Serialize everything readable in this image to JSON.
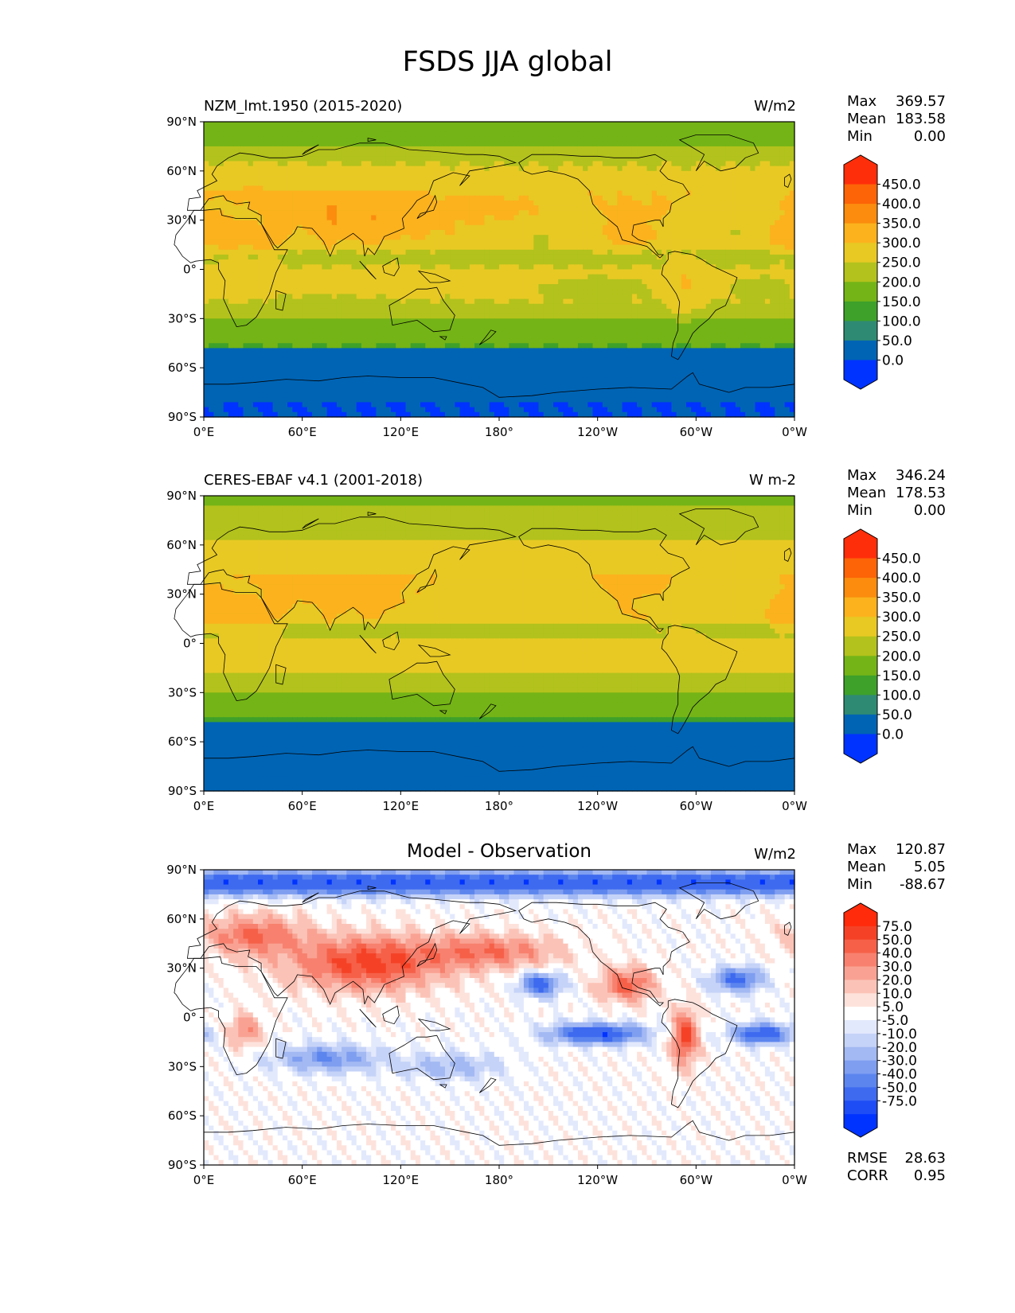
{
  "title": "FSDS JJA global",
  "axes": {
    "lon_labels": [
      "0°E",
      "60°E",
      "120°E",
      "180°",
      "120°W",
      "60°W",
      "0°W"
    ],
    "lat_labels": [
      "90°N",
      "60°N",
      "30°N",
      "0°",
      "30°S",
      "60°S",
      "90°S"
    ]
  },
  "colors": {
    "fsds": [
      "#0033ff",
      "#0064b4",
      "#2e8a73",
      "#3ea12a",
      "#74b416",
      "#b3c21c",
      "#e8c924",
      "#fbb21d",
      "#fb8c0e",
      "#fc6407",
      "#ff2e0a"
    ],
    "diff": [
      "#0033ff",
      "#1e4df5",
      "#3e6af0",
      "#5c85ee",
      "#7f9ef0",
      "#a3b9f3",
      "#c6d3f8",
      "#e3e9fc",
      "#ffffff",
      "#fde2dc",
      "#fbc3b7",
      "#f9a293",
      "#f7816e",
      "#f66049",
      "#f54226",
      "#ff2b0b"
    ]
  },
  "panels": [
    {
      "subtitle": "NZM_lmt.1950 (2015-2020)",
      "units": "W/m2",
      "center_title": "",
      "stats": [
        {
          "label": "Max",
          "value": "369.57"
        },
        {
          "label": "Mean",
          "value": "183.58"
        },
        {
          "label": "Min",
          "value": "0.00"
        }
      ],
      "colorbar": {
        "levels": [
          "450.0",
          "400.0",
          "350.0",
          "300.0",
          "250.0",
          "200.0",
          "150.0",
          "100.0",
          "50.0",
          "0.0"
        ],
        "palette": "fsds"
      },
      "field": "model"
    },
    {
      "subtitle": "CERES-EBAF v4.1 (2001-2018)",
      "units": "W m-2",
      "center_title": "",
      "stats": [
        {
          "label": "Max",
          "value": "346.24"
        },
        {
          "label": "Mean",
          "value": "178.53"
        },
        {
          "label": "Min",
          "value": "0.00"
        }
      ],
      "colorbar": {
        "levels": [
          "450.0",
          "400.0",
          "350.0",
          "300.0",
          "250.0",
          "200.0",
          "150.0",
          "100.0",
          "50.0",
          "0.0"
        ],
        "palette": "fsds"
      },
      "field": "obs"
    },
    {
      "subtitle": "",
      "units": "W/m2",
      "center_title": "Model - Observation",
      "stats": [
        {
          "label": "Max",
          "value": "120.87"
        },
        {
          "label": "Mean",
          "value": "5.05"
        },
        {
          "label": "Min",
          "value": "-88.67"
        }
      ],
      "colorbar": {
        "levels": [
          "75.0",
          "50.0",
          "40.0",
          "30.0",
          "20.0",
          "10.0",
          "5.0",
          "-5.0",
          "-10.0",
          "-20.0",
          "-30.0",
          "-40.0",
          "-50.0",
          "-75.0"
        ],
        "palette": "diff"
      },
      "extra_stats": [
        {
          "label": "RMSE",
          "value": "28.63"
        },
        {
          "label": "CORR",
          "value": "0.95"
        }
      ],
      "field": "diff"
    }
  ]
}
